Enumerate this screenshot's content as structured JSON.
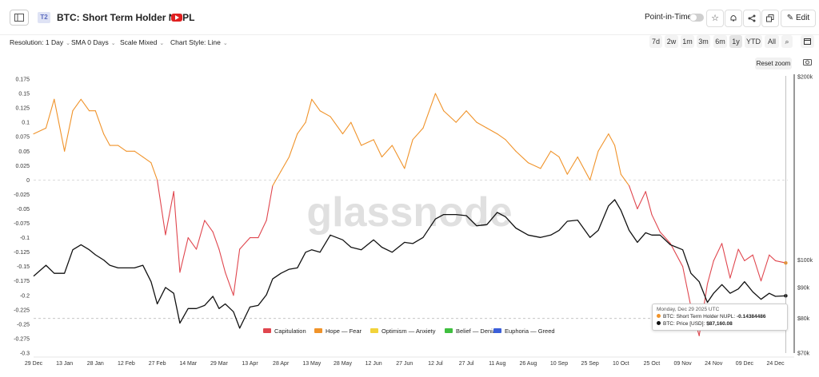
{
  "header": {
    "tier_badge": "T2",
    "title": "BTC: Short Term Holder NUPL",
    "point_in_time_label": "Point-in-Time",
    "edit_label": "Edit"
  },
  "controls": {
    "resolution": "Resolution: 1 Day",
    "sma": "SMA 0 Days",
    "scale": "Scale Mixed",
    "chart_style": "Chart Style: Line",
    "ranges": [
      "7d",
      "2w",
      "1m",
      "3m",
      "6m",
      "1y",
      "YTD",
      "All"
    ],
    "selected_range": "1y",
    "reset_zoom": "Reset zoom"
  },
  "colors": {
    "capitulation": "#e0464e",
    "hope_fear": "#f0932a",
    "optimism_anxiety": "#f2d33a",
    "belief_denial": "#3fbf3f",
    "euphoria_greed": "#3b5fd9",
    "price": "#111111",
    "accent": "#e02020"
  },
  "watermark": "glassnode",
  "chart_data": {
    "type": "line",
    "title": "BTC: Short Term Holder NUPL",
    "x_ticks": [
      "29 Dec",
      "13 Jan",
      "28 Jan",
      "12 Feb",
      "27 Feb",
      "14 Mar",
      "29 Mar",
      "13 Apr",
      "28 Apr",
      "13 May",
      "28 May",
      "12 Jun",
      "27 Jun",
      "12 Jul",
      "27 Jul",
      "11 Aug",
      "26 Aug",
      "10 Sep",
      "25 Sep",
      "10 Oct",
      "25 Oct",
      "09 Nov",
      "24 Nov",
      "09 Dec",
      "24 Dec"
    ],
    "x_range": [
      "2024-12-29",
      "2025-12-30"
    ],
    "y_left_ticks": [
      "0.175",
      "0.15",
      "0.125",
      "0.1",
      "0.075",
      "0.05",
      "0.025",
      "0",
      "-0.025",
      "-0.05",
      "-0.075",
      "-0.1",
      "-0.125",
      "-0.15",
      "-0.175",
      "-0.2",
      "-0.225",
      "-0.25",
      "-0.275",
      "-0.3"
    ],
    "y_left_range": [
      -0.3,
      0.175
    ],
    "y_right_ticks": [
      "$200k",
      "$100k",
      "$90k",
      "$80k",
      "$70k"
    ],
    "y_right_range": [
      70000,
      200000
    ],
    "y_right_scale": "log",
    "legend": [
      "Capitulation",
      "Hope — Fear",
      "Optimism — Anxiety",
      "Belief — Denial",
      "Euphoria — Greed"
    ],
    "legend_position": "bottom-center",
    "series": [
      {
        "name": "BTC: Short Term Holder NUPL",
        "dates": [
          "2024-12-29",
          "2025-01-04",
          "2025-01-08",
          "2025-01-13",
          "2025-01-17",
          "2025-01-21",
          "2025-01-25",
          "2025-01-28",
          "2025-02-01",
          "2025-02-04",
          "2025-02-08",
          "2025-02-12",
          "2025-02-16",
          "2025-02-20",
          "2025-02-24",
          "2025-02-27",
          "2025-03-03",
          "2025-03-07",
          "2025-03-10",
          "2025-03-14",
          "2025-03-18",
          "2025-03-22",
          "2025-03-26",
          "2025-03-29",
          "2025-04-01",
          "2025-04-05",
          "2025-04-08",
          "2025-04-13",
          "2025-04-17",
          "2025-04-21",
          "2025-04-24",
          "2025-04-28",
          "2025-05-02",
          "2025-05-06",
          "2025-05-10",
          "2025-05-13",
          "2025-05-17",
          "2025-05-22",
          "2025-05-28",
          "2025-06-01",
          "2025-06-06",
          "2025-06-12",
          "2025-06-16",
          "2025-06-21",
          "2025-06-27",
          "2025-07-01",
          "2025-07-06",
          "2025-07-12",
          "2025-07-16",
          "2025-07-22",
          "2025-07-27",
          "2025-08-01",
          "2025-08-06",
          "2025-08-11",
          "2025-08-15",
          "2025-08-20",
          "2025-08-26",
          "2025-09-01",
          "2025-09-06",
          "2025-09-10",
          "2025-09-14",
          "2025-09-19",
          "2025-09-25",
          "2025-09-29",
          "2025-10-04",
          "2025-10-07",
          "2025-10-10",
          "2025-10-14",
          "2025-10-18",
          "2025-10-22",
          "2025-10-25",
          "2025-10-29",
          "2025-11-03",
          "2025-11-09",
          "2025-11-13",
          "2025-11-17",
          "2025-11-21",
          "2025-11-24",
          "2025-11-28",
          "2025-12-02",
          "2025-12-06",
          "2025-12-09",
          "2025-12-13",
          "2025-12-17",
          "2025-12-21",
          "2025-12-24",
          "2025-12-29"
        ],
        "values": [
          0.08,
          0.09,
          0.14,
          0.05,
          0.12,
          0.14,
          0.12,
          0.12,
          0.08,
          0.06,
          0.06,
          0.05,
          0.05,
          0.04,
          0.03,
          0.0,
          -0.095,
          -0.02,
          -0.16,
          -0.1,
          -0.12,
          -0.07,
          -0.09,
          -0.12,
          -0.16,
          -0.2,
          -0.12,
          -0.1,
          -0.1,
          -0.07,
          -0.01,
          0.015,
          0.04,
          0.08,
          0.1,
          0.14,
          0.12,
          0.11,
          0.08,
          0.1,
          0.06,
          0.07,
          0.04,
          0.06,
          0.02,
          0.07,
          0.09,
          0.15,
          0.12,
          0.1,
          0.12,
          0.1,
          0.09,
          0.08,
          0.07,
          0.05,
          0.03,
          0.02,
          0.05,
          0.04,
          0.01,
          0.04,
          0.0,
          0.05,
          0.08,
          0.06,
          0.01,
          -0.01,
          -0.05,
          -0.02,
          -0.06,
          -0.09,
          -0.11,
          -0.15,
          -0.22,
          -0.27,
          -0.18,
          -0.14,
          -0.11,
          -0.17,
          -0.12,
          -0.14,
          -0.13,
          -0.175,
          -0.13,
          -0.14,
          -0.1438
        ]
      },
      {
        "name": "BTC: Price [USD]",
        "dates": [
          "2024-12-29",
          "2025-01-04",
          "2025-01-08",
          "2025-01-13",
          "2025-01-17",
          "2025-01-21",
          "2025-01-25",
          "2025-01-28",
          "2025-02-01",
          "2025-02-04",
          "2025-02-08",
          "2025-02-12",
          "2025-02-16",
          "2025-02-20",
          "2025-02-24",
          "2025-02-27",
          "2025-03-03",
          "2025-03-07",
          "2025-03-10",
          "2025-03-14",
          "2025-03-18",
          "2025-03-22",
          "2025-03-26",
          "2025-03-29",
          "2025-04-01",
          "2025-04-05",
          "2025-04-08",
          "2025-04-13",
          "2025-04-17",
          "2025-04-21",
          "2025-04-24",
          "2025-04-28",
          "2025-05-02",
          "2025-05-06",
          "2025-05-10",
          "2025-05-13",
          "2025-05-17",
          "2025-05-22",
          "2025-05-28",
          "2025-06-01",
          "2025-06-06",
          "2025-06-12",
          "2025-06-16",
          "2025-06-21",
          "2025-06-27",
          "2025-07-01",
          "2025-07-06",
          "2025-07-12",
          "2025-07-16",
          "2025-07-22",
          "2025-07-27",
          "2025-08-01",
          "2025-08-06",
          "2025-08-11",
          "2025-08-15",
          "2025-08-20",
          "2025-08-26",
          "2025-09-01",
          "2025-09-06",
          "2025-09-10",
          "2025-09-14",
          "2025-09-19",
          "2025-09-25",
          "2025-09-29",
          "2025-10-04",
          "2025-10-07",
          "2025-10-10",
          "2025-10-14",
          "2025-10-18",
          "2025-10-22",
          "2025-10-25",
          "2025-10-29",
          "2025-11-03",
          "2025-11-09",
          "2025-11-13",
          "2025-11-17",
          "2025-11-21",
          "2025-11-24",
          "2025-11-28",
          "2025-12-02",
          "2025-12-06",
          "2025-12-09",
          "2025-12-13",
          "2025-12-17",
          "2025-12-21",
          "2025-12-24",
          "2025-12-29"
        ],
        "values": [
          94000,
          98000,
          95000,
          95000,
          104000,
          106000,
          104000,
          102000,
          100000,
          98000,
          97000,
          97000,
          97000,
          98000,
          92000,
          84500,
          90000,
          88000,
          78500,
          83000,
          83000,
          84000,
          87000,
          83000,
          84500,
          82000,
          77000,
          83500,
          84000,
          87500,
          93000,
          95000,
          96500,
          97000,
          103000,
          104000,
          103000,
          110000,
          108000,
          105000,
          104000,
          108000,
          105000,
          103000,
          107000,
          106500,
          109000,
          117000,
          119000,
          119000,
          118500,
          114000,
          114500,
          120000,
          118000,
          113000,
          110000,
          109000,
          110000,
          112000,
          116000,
          116500,
          109000,
          112000,
          123000,
          126000,
          121000,
          112000,
          107000,
          111000,
          110000,
          110000,
          106000,
          104000,
          95000,
          92000,
          85000,
          88000,
          91000,
          88000,
          89500,
          92000,
          88500,
          86000,
          88000,
          87000,
          87160
        ]
      }
    ]
  },
  "tooltip": {
    "date": "Monday, Dec 29 2025 UTC",
    "nupl_label": "BTC: Short Term Holder NUPL:",
    "nupl_value": "-0.14384486",
    "price_label": "BTC: Price [USD]:",
    "price_value": "$87,160.08"
  }
}
